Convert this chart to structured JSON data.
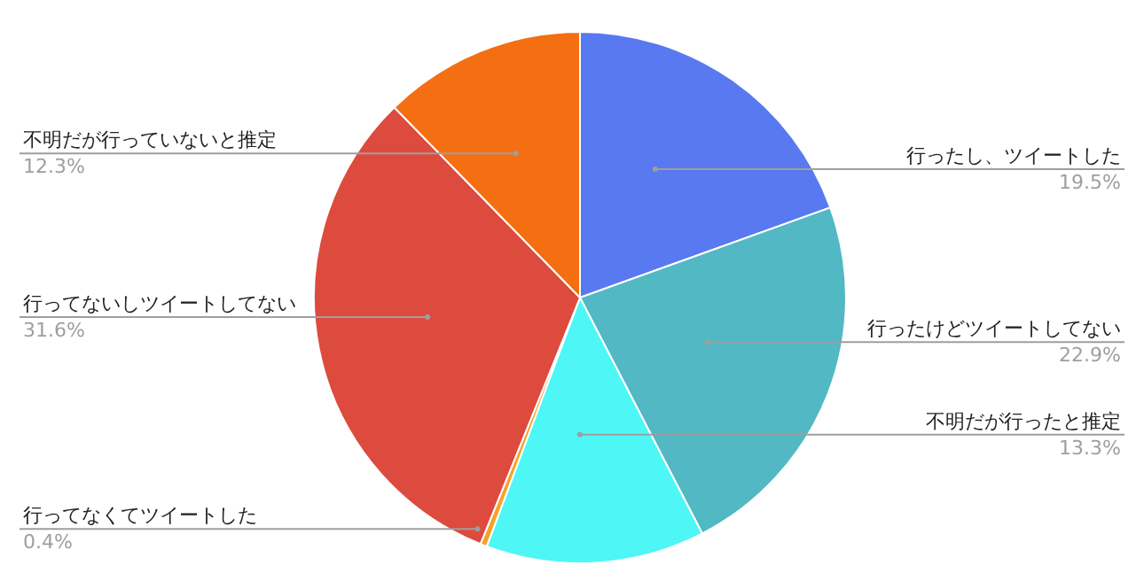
{
  "chart_data": {
    "type": "pie",
    "categories": [
      "行ったし、ツイートした",
      "行ったけどツイートしてない",
      "不明だが行ったと推定",
      "行ってなくてツイートした",
      "行ってないしツイートしてない",
      "不明だが行っていないと推定"
    ],
    "values": [
      19.5,
      22.9,
      13.3,
      0.4,
      31.6,
      12.3
    ],
    "value_labels": [
      "19.5%",
      "22.9%",
      "13.3%",
      "0.4%",
      "31.6%",
      "12.3%"
    ],
    "colors": [
      "#5879f0",
      "#52b8c4",
      "#4ff6f6",
      "#f3a32a",
      "#dd4a3e",
      "#f46f12"
    ],
    "legend": false
  }
}
